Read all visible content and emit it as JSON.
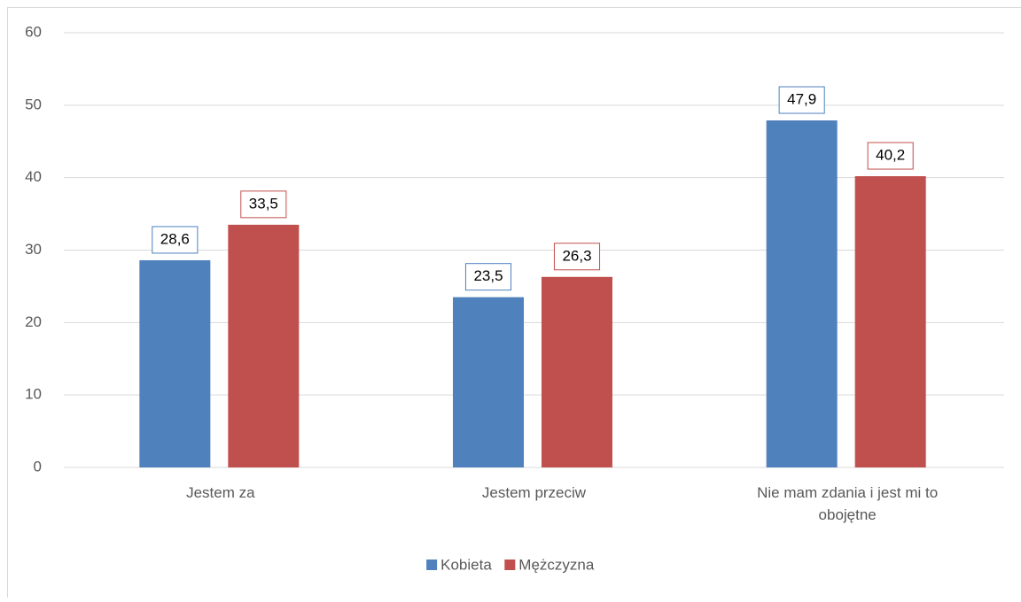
{
  "chart_data": {
    "type": "bar",
    "categories": [
      "Jestem za",
      "Jestem przeciw",
      "Nie mam zdania i jest mi to obojętne"
    ],
    "series": [
      {
        "name": "Kobieta",
        "color": "#4f81bd",
        "values": [
          28.6,
          23.5,
          47.9
        ],
        "value_labels": [
          "28,6",
          "23,5",
          "47,9"
        ]
      },
      {
        "name": "Mężczyzna",
        "color": "#c0504d",
        "values": [
          33.5,
          26.3,
          40.2
        ],
        "value_labels": [
          "33,5",
          "26,3",
          "40,2"
        ]
      }
    ],
    "ylim": [
      0,
      60
    ],
    "yticks": [
      0,
      10,
      20,
      30,
      40,
      50,
      60
    ],
    "grid": true,
    "legend": "bottom"
  }
}
